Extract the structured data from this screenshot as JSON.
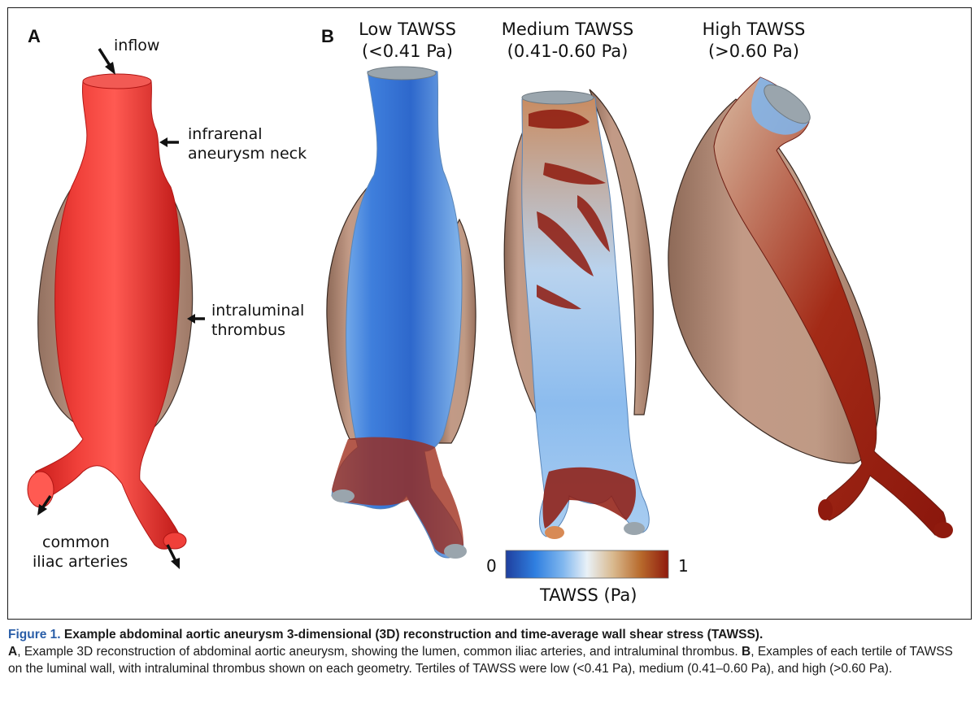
{
  "panel_a": {
    "letter": "A",
    "labels": {
      "inflow": "inflow",
      "neck_line1": "infrarenal",
      "neck_line2": "aneurysm neck",
      "thrombus_line1": "intraluminal",
      "thrombus_line2": "thrombus",
      "iliac_line1": "common",
      "iliac_line2": "iliac arteries"
    }
  },
  "panel_b": {
    "letter": "B",
    "columns": [
      {
        "title": "Low TAWSS",
        "range": "(<0.41 Pa)"
      },
      {
        "title": "Medium TAWSS",
        "range": "(0.41-0.60 Pa)"
      },
      {
        "title": "High TAWSS",
        "range": "(>0.60 Pa)"
      }
    ],
    "colorbar": {
      "min_label": "0",
      "max_label": "1",
      "title": "TAWSS (Pa)",
      "colors": [
        "#1f3f9e",
        "#2f7fe0",
        "#7fb6ee",
        "#e9f1f7",
        "#d9b98e",
        "#b86a2c",
        "#8f1a0e"
      ]
    }
  },
  "colors": {
    "lumen_red": "#e8302c",
    "thrombus_tan": "#b98c76",
    "low_blue": "#4f8ce0",
    "high_red": "#9a1a10",
    "caption_blue": "#2a5ea8"
  },
  "caption": {
    "figure_number": "Figure 1.",
    "title": "Example abdominal aortic aneurysm 3-dimensional (3D) reconstruction and time-average wall shear stress (TAWSS).",
    "panel_a_letter": "A",
    "panel_a_text": ", Example 3D reconstruction of abdominal aortic aneurysm, showing the lumen, common iliac arteries, and intraluminal thrombus. ",
    "panel_b_letter": "B",
    "panel_b_text": ", Examples of each tertile of TAWSS on the luminal wall, with intraluminal thrombus shown on each geometry. Tertiles of TAWSS were low (<0.41 Pa), medium (0.41–0.60 Pa), and high (>0.60 Pa)."
  }
}
